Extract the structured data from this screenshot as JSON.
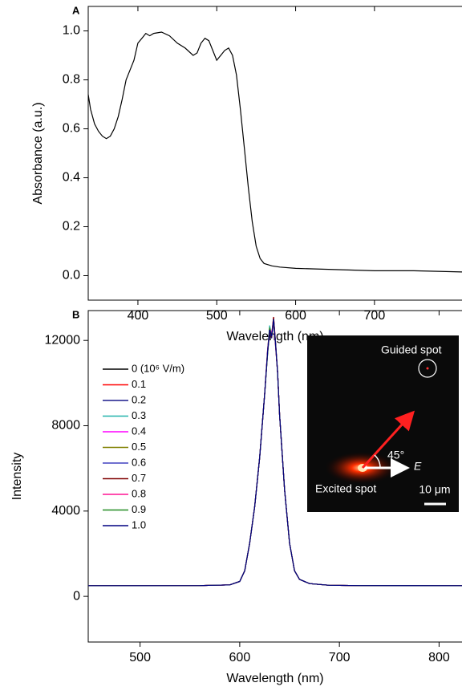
{
  "chart_data": [
    {
      "type": "line",
      "panel": "A",
      "x_label": "Wavelength (nm)",
      "y_label": "Absorbance (a.u.)",
      "x": [
        337,
        340,
        345,
        350,
        355,
        360,
        365,
        370,
        375,
        380,
        385,
        390,
        395,
        400,
        405,
        410,
        415,
        420,
        430,
        440,
        450,
        460,
        470,
        475,
        480,
        485,
        490,
        495,
        500,
        505,
        510,
        515,
        520,
        525,
        530,
        535,
        540,
        545,
        550,
        555,
        560,
        570,
        580,
        600,
        650,
        700,
        750,
        811
      ],
      "values": [
        0.74,
        0.68,
        0.62,
        0.59,
        0.57,
        0.56,
        0.57,
        0.6,
        0.65,
        0.72,
        0.8,
        0.84,
        0.88,
        0.95,
        0.97,
        0.99,
        0.98,
        0.99,
        0.995,
        0.98,
        0.95,
        0.93,
        0.9,
        0.91,
        0.95,
        0.97,
        0.96,
        0.92,
        0.88,
        0.9,
        0.92,
        0.93,
        0.9,
        0.82,
        0.68,
        0.52,
        0.36,
        0.22,
        0.12,
        0.07,
        0.05,
        0.04,
        0.035,
        0.03,
        0.025,
        0.02,
        0.02,
        0.015
      ],
      "color": "#000000",
      "xlim": [
        337,
        811
      ],
      "xticks": [
        400,
        500,
        600,
        700
      ],
      "ylim": [
        -0.1,
        1.1
      ],
      "yticks": [
        {
          "value": 0,
          "label": "0.0"
        },
        0.2,
        0.4,
        0.6,
        0.8,
        {
          "value": 1,
          "label": "1.0"
        }
      ]
    },
    {
      "type": "line",
      "panel": "B",
      "x_label": "Wavelength (nm)",
      "y_label": "Intensity",
      "x": [
        448,
        500,
        560,
        590,
        600,
        605,
        610,
        615,
        620,
        625,
        628,
        630,
        632,
        634,
        636,
        638,
        640,
        645,
        650,
        655,
        660,
        670,
        690,
        720,
        823
      ],
      "series": [
        {
          "name": "0 (10⁶ V/m)",
          "color": "#000000",
          "values": [
            500,
            500,
            505,
            540,
            700,
            1200,
            2500,
            4200,
            6500,
            9500,
            11500,
            12500,
            12200,
            13000,
            11800,
            10500,
            8500,
            5000,
            2500,
            1200,
            800,
            600,
            520,
            505,
            500
          ]
        },
        {
          "name": "0.1",
          "color": "#ff0000",
          "values": [
            500,
            500,
            505,
            540,
            700,
            1200,
            2500,
            4200,
            6500,
            9500,
            11600,
            12600,
            12300,
            13100,
            11900,
            10500,
            8500,
            5000,
            2500,
            1200,
            800,
            600,
            520,
            505,
            500
          ]
        },
        {
          "name": "0.2",
          "color": "#1a1a8c",
          "values": [
            500,
            500,
            505,
            540,
            700,
            1200,
            2500,
            4200,
            6500,
            9500,
            11400,
            12400,
            12100,
            12900,
            11700,
            10500,
            8500,
            5000,
            2500,
            1200,
            800,
            600,
            520,
            505,
            500
          ]
        },
        {
          "name": "0.3",
          "color": "#20b2aa",
          "values": [
            500,
            500,
            505,
            540,
            700,
            1200,
            2500,
            4200,
            6500,
            9500,
            11500,
            12700,
            12200,
            13000,
            11800,
            10500,
            8500,
            5000,
            2500,
            1200,
            800,
            600,
            520,
            505,
            500
          ]
        },
        {
          "name": "0.4",
          "color": "#ff00ff",
          "values": [
            500,
            500,
            505,
            540,
            700,
            1200,
            2500,
            4200,
            6500,
            9500,
            11500,
            12500,
            12400,
            12800,
            11800,
            10500,
            8500,
            5000,
            2500,
            1200,
            800,
            600,
            520,
            505,
            500
          ]
        },
        {
          "name": "0.5",
          "color": "#808000",
          "values": [
            500,
            500,
            505,
            540,
            700,
            1200,
            2500,
            4200,
            6500,
            9500,
            11500,
            12600,
            12200,
            12900,
            11800,
            10500,
            8500,
            5000,
            2500,
            1200,
            800,
            600,
            520,
            505,
            500
          ]
        },
        {
          "name": "0.6",
          "color": "#4040c0",
          "values": [
            500,
            500,
            505,
            540,
            700,
            1200,
            2500,
            4200,
            6500,
            9500,
            11600,
            12500,
            12300,
            13000,
            11900,
            10500,
            8500,
            5000,
            2500,
            1200,
            800,
            600,
            520,
            505,
            500
          ]
        },
        {
          "name": "0.7",
          "color": "#800000",
          "values": [
            500,
            500,
            505,
            540,
            700,
            1200,
            2500,
            4200,
            6500,
            9500,
            11500,
            12400,
            12200,
            13100,
            11800,
            10500,
            8500,
            5000,
            2500,
            1200,
            800,
            600,
            520,
            505,
            500
          ]
        },
        {
          "name": "0.8",
          "color": "#ff1493",
          "values": [
            500,
            500,
            505,
            540,
            700,
            1200,
            2500,
            4200,
            6500,
            9500,
            11500,
            12500,
            12300,
            13000,
            11700,
            10500,
            8500,
            5000,
            2500,
            1200,
            800,
            600,
            520,
            505,
            500
          ]
        },
        {
          "name": "0.9",
          "color": "#228b22",
          "values": [
            500,
            500,
            505,
            540,
            700,
            1200,
            2500,
            4200,
            6500,
            9500,
            11400,
            12600,
            12200,
            13000,
            11800,
            10500,
            8500,
            5000,
            2500,
            1200,
            800,
            600,
            520,
            505,
            500
          ]
        },
        {
          "name": "1.0",
          "color": "#000080",
          "values": [
            500,
            500,
            505,
            540,
            700,
            1200,
            2500,
            4200,
            6500,
            9500,
            11500,
            12500,
            12200,
            13000,
            11800,
            10500,
            8500,
            5000,
            2500,
            1200,
            800,
            600,
            520,
            505,
            500
          ]
        }
      ],
      "inset_labels": [
        "Guided spot",
        "45°",
        "E",
        "Excited spot",
        "10 μm"
      ],
      "xlim": [
        448,
        823
      ],
      "xticks": [
        500,
        600,
        700,
        800
      ],
      "ylim": [
        -2140,
        13400
      ],
      "yticks": [
        0,
        4000,
        8000,
        12000
      ]
    }
  ]
}
